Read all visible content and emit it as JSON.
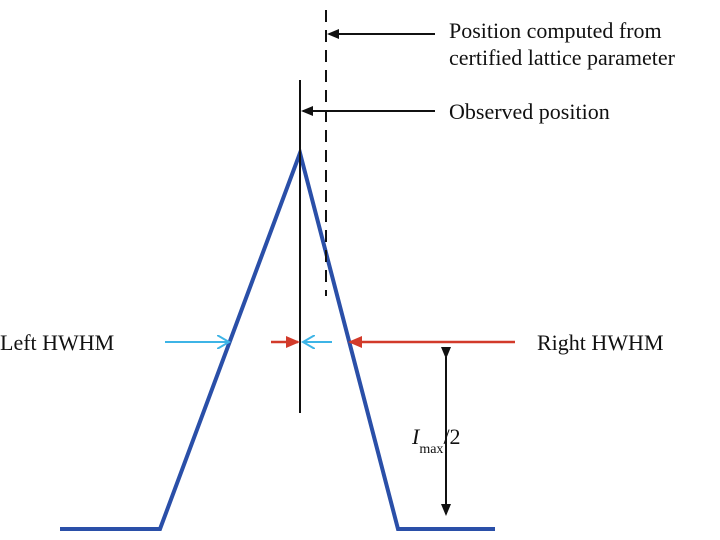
{
  "labels": {
    "computed_line1": "Position computed from",
    "computed_line2": "certified lattice parameter",
    "observed": "Observed position",
    "left_hwhm": "Left HWHM",
    "right_hwhm": "Right HWHM",
    "imax_symbol": "I",
    "imax_subscript": "max",
    "imax_suffix": "/2"
  },
  "colors": {
    "profile": "#2a4fa8",
    "left_arrow": "#3db4e6",
    "right_arrow": "#d23a2a",
    "lines": "#111111"
  }
}
